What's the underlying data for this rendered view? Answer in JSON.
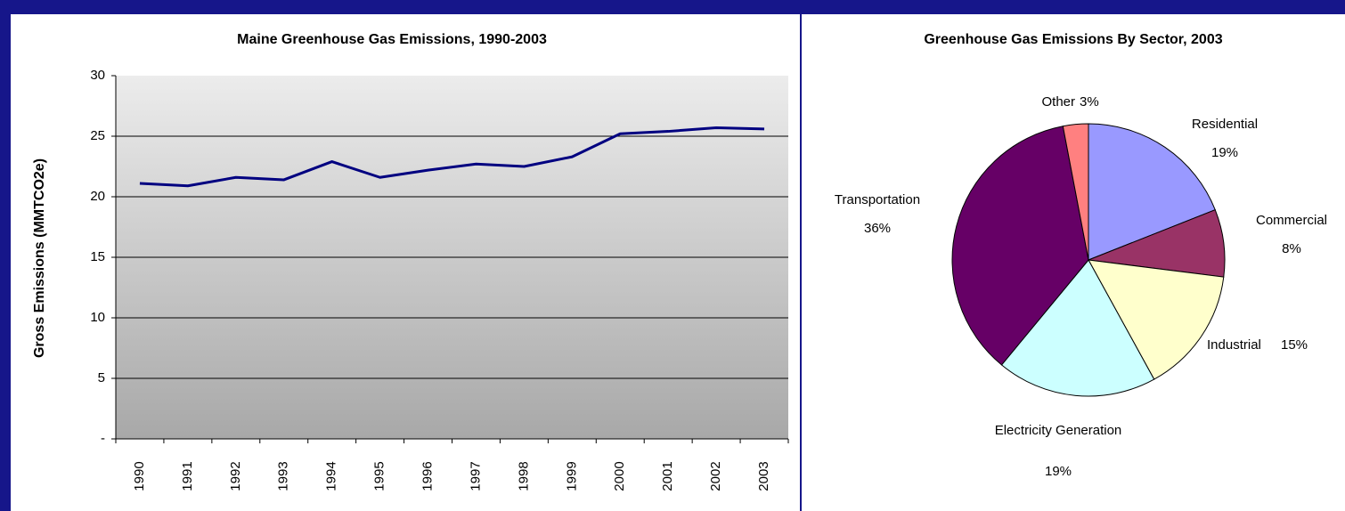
{
  "chart_data": [
    {
      "type": "line",
      "title": "Maine Greenhouse Gas Emissions, 1990-2003",
      "y_label": "Gross Emissions (MMTCO2e)",
      "categories": [
        "1990",
        "1991",
        "1992",
        "1993",
        "1994",
        "1995",
        "1996",
        "1997",
        "1998",
        "1999",
        "2000",
        "2001",
        "2002",
        "2003"
      ],
      "series": [
        {
          "name": "Gross Emissions",
          "color": "#000080",
          "values": [
            21.1,
            20.9,
            21.6,
            21.4,
            22.9,
            21.6,
            22.2,
            22.7,
            22.5,
            23.3,
            25.2,
            25.4,
            25.7,
            25.6
          ]
        }
      ],
      "ylim": [
        0,
        30
      ],
      "yticks": [
        {
          "value": 0,
          "label": "-"
        },
        5,
        10,
        15,
        20,
        25,
        30
      ],
      "grid": true
    },
    {
      "type": "pie",
      "title": "Greenhouse Gas Emissions By Sector, 2003",
      "categories": [
        "Residential",
        "Commercial",
        "Industrial",
        "Electricity Generation",
        "Transportation",
        "Other"
      ],
      "values": [
        19,
        8,
        15,
        19,
        36,
        3
      ],
      "value_labels": [
        "19%",
        "8%",
        "15%",
        "19%",
        "36%",
        "3%"
      ],
      "colors": [
        "#9999ff",
        "#993366",
        "#ffffcc",
        "#ccffff",
        "#660066",
        "#ff8080"
      ]
    }
  ]
}
